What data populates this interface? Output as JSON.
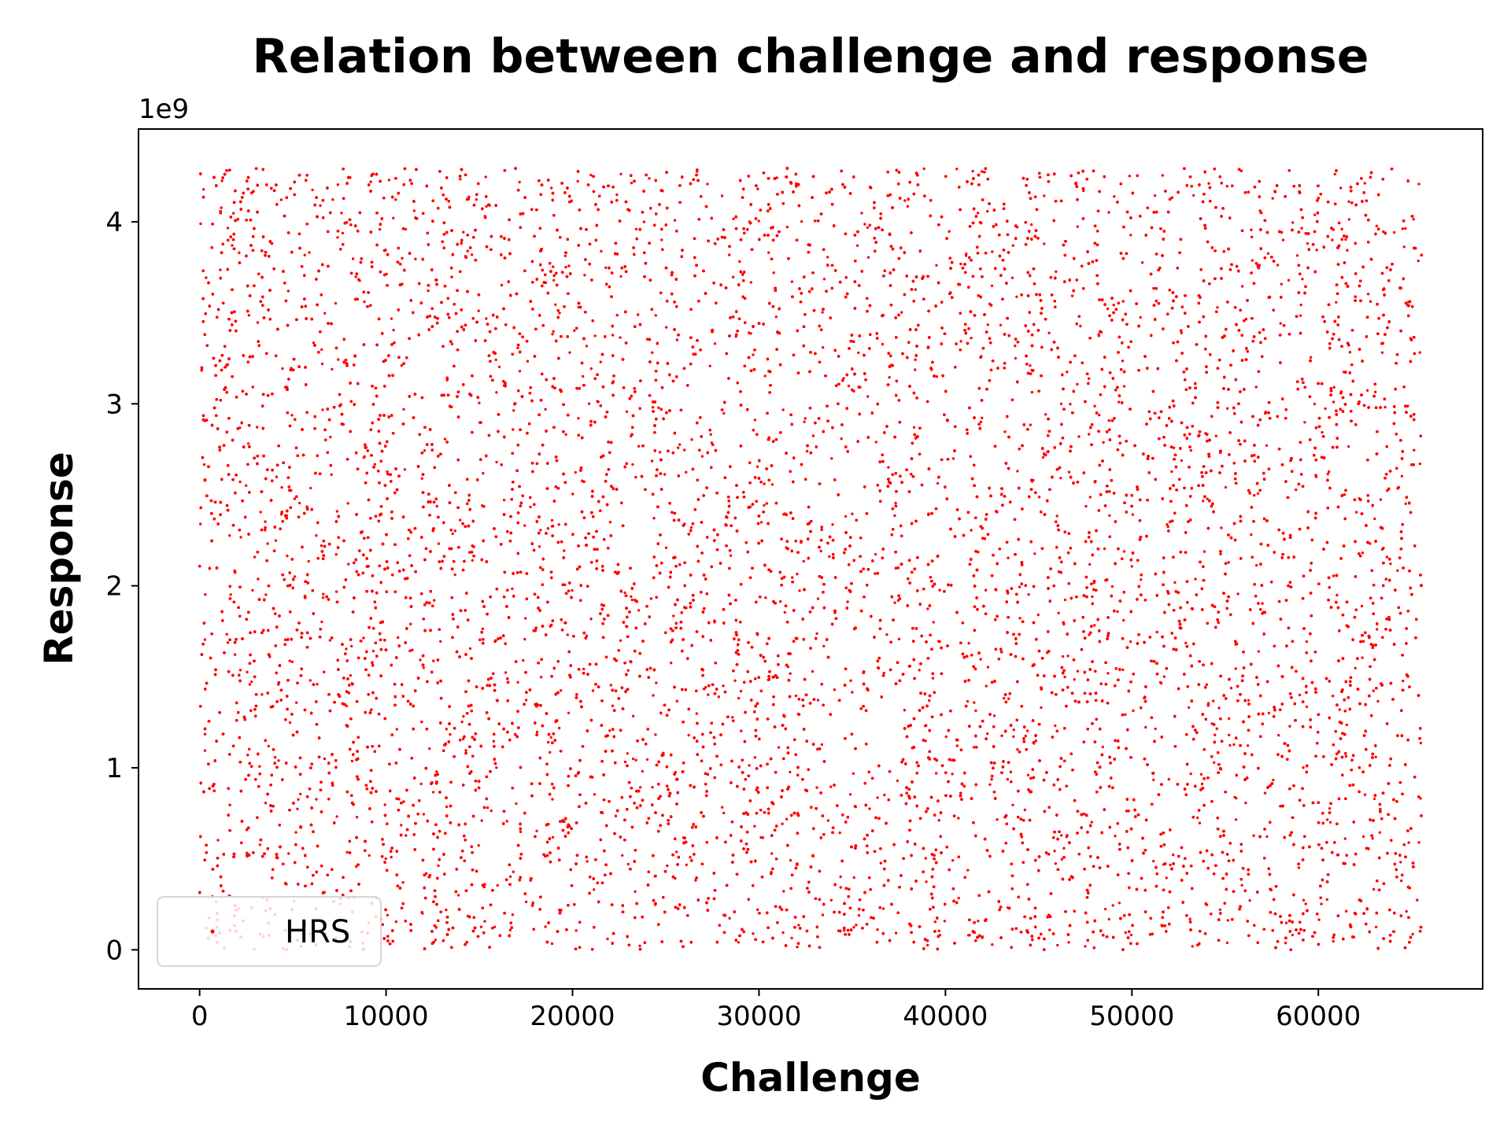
{
  "chart_data": {
    "type": "scatter",
    "title": "Relation between challenge and response",
    "xlabel": "Challenge",
    "ylabel": "Response",
    "y_offset_label": "1e9",
    "xlim": [
      -3277,
      68812
    ],
    "ylim": [
      -0.2147,
      4.5097
    ],
    "x_ticks": [
      0,
      10000,
      20000,
      30000,
      40000,
      50000,
      60000
    ],
    "x_tick_labels": [
      "0",
      "10000",
      "20000",
      "30000",
      "40000",
      "50000",
      "60000"
    ],
    "y_ticks": [
      0,
      1,
      2,
      3,
      4
    ],
    "y_tick_labels": [
      "0",
      "1",
      "2",
      "3",
      "4"
    ],
    "grid": false,
    "legend_position": "lower left",
    "series": [
      {
        "name": "HRS",
        "color": "#ff0000",
        "marker": "point",
        "x_range": [
          0,
          65535
        ],
        "y_range": [
          0,
          4.295
        ],
        "point_count": 65536,
        "distribution": "uniform random"
      }
    ]
  }
}
